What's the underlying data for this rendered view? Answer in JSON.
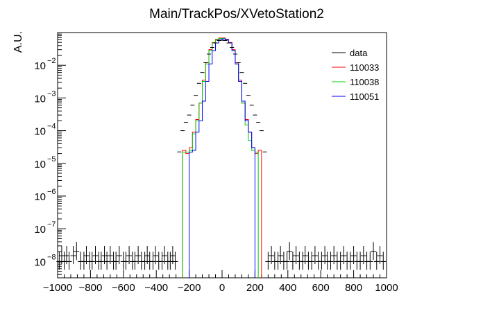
{
  "chart_data": {
    "type": "line",
    "title": "Main/TrackPos/XVetoStation2",
    "xlabel": "",
    "ylabel": "A.U.",
    "xlim": [
      -1000,
      1000
    ],
    "ylim_log10": [
      -8.5,
      -1.0
    ],
    "log_y": true,
    "grid": false,
    "legend_position": "top-right",
    "x_ticks": [
      -1000,
      -800,
      -600,
      -400,
      -200,
      0,
      200,
      400,
      600,
      800,
      1000
    ],
    "x_tick_labels": [
      "−1000",
      "−800",
      "−600",
      "−400",
      "−200",
      "0",
      "200",
      "400",
      "600",
      "800",
      "1000"
    ],
    "y_decades": [
      -8,
      -7,
      -6,
      -5,
      -4,
      -3,
      -2
    ],
    "y_tick_labels": [
      {
        "base": "10",
        "exp": "−8"
      },
      {
        "base": "10",
        "exp": "−7"
      },
      {
        "base": "10",
        "exp": "−6"
      },
      {
        "base": "10",
        "exp": "−5"
      },
      {
        "base": "10",
        "exp": "−4"
      },
      {
        "base": "10",
        "exp": "−3"
      },
      {
        "base": "10",
        "exp": "−2"
      }
    ],
    "legend": [
      {
        "name": "data",
        "color": "#000000"
      },
      {
        "name": "110033",
        "color": "#ff0000"
      },
      {
        "name": "110038",
        "color": "#00d000"
      },
      {
        "name": "110051",
        "color": "#0000ff"
      }
    ],
    "data_points": {
      "x": [
        -260,
        -240,
        -220,
        -200,
        -180,
        -160,
        -140,
        -120,
        -100,
        -80,
        -60,
        -40,
        -20,
        0,
        20,
        40,
        60,
        80,
        100,
        120,
        140,
        160,
        180,
        200,
        220,
        240,
        260
      ],
      "y": [
        2.24e-05,
        0.0001,
        0.00018,
        0.0003,
        0.0006,
        0.0012,
        0.0028,
        0.006,
        0.012,
        0.022,
        0.035,
        0.048,
        0.057,
        0.058,
        0.057,
        0.048,
        0.035,
        0.022,
        0.012,
        0.006,
        0.0028,
        0.0012,
        0.0006,
        0.0003,
        0.00018,
        0.0001,
        2.24e-05
      ]
    },
    "noise_points": {
      "x": [
        -990,
        -975,
        -960,
        -945,
        -930,
        -905,
        -885,
        -860,
        -840,
        -825,
        -805,
        -790,
        -770,
        -750,
        -735,
        -715,
        -700,
        -680,
        -660,
        -645,
        -625,
        -600,
        -585,
        -565,
        -545,
        -530,
        -510,
        -490,
        -470,
        -455,
        -440,
        -420,
        -405,
        -385,
        -365,
        -350,
        -330,
        -315,
        -300,
        -285,
        280,
        300,
        320,
        340,
        355,
        375,
        395,
        410,
        430,
        450,
        470,
        490,
        505,
        525,
        545,
        565,
        585,
        605,
        625,
        640,
        660,
        680,
        700,
        720,
        740,
        760,
        780,
        800,
        820,
        840,
        860,
        880,
        900,
        920,
        940,
        960,
        980
      ],
      "y": [
        1e-08,
        1.5e-08,
        1e-08,
        1.5e-08,
        1e-08,
        1.5e-08,
        2e-08,
        1e-08,
        1e-08,
        1.5e-08,
        1e-08,
        1e-08,
        1.5e-08,
        1e-08,
        1e-08,
        1.5e-08,
        1e-08,
        1.5e-08,
        1e-08,
        1e-08,
        1.5e-08,
        1e-08,
        1e-08,
        1.5e-08,
        1e-08,
        1e-08,
        1.5e-08,
        1e-08,
        1e-08,
        1.5e-08,
        1e-08,
        1e-08,
        1.5e-08,
        1e-08,
        1e-08,
        1.5e-08,
        1e-08,
        1e-08,
        1.5e-08,
        1e-08,
        1e-08,
        1.5e-08,
        1e-08,
        1e-08,
        1.5e-08,
        1e-08,
        1e-08,
        2e-08,
        1e-08,
        1.5e-08,
        1e-08,
        1e-08,
        1.5e-08,
        1e-08,
        1e-08,
        1.5e-08,
        1e-08,
        1e-08,
        1.5e-08,
        1e-08,
        1e-08,
        1.5e-08,
        1e-08,
        1e-08,
        1.5e-08,
        1e-08,
        1e-08,
        1.5e-08,
        1e-08,
        1e-08,
        1.5e-08,
        1e-08,
        1e-08,
        2e-08,
        1e-08,
        1.5e-08,
        1e-08
      ]
    },
    "series": [
      {
        "name": "110033",
        "color": "#ff0000",
        "edges": [
          -240,
          -220,
          -200,
          -180,
          -160,
          -140,
          -120,
          -100,
          -80,
          -60,
          -40,
          -20,
          0,
          20,
          40,
          60,
          80,
          100,
          120,
          140,
          160,
          180,
          200,
          220,
          240
        ],
        "values": [
          2.5e-05,
          2e-05,
          3e-05,
          9e-05,
          0.00022,
          0.0007,
          0.0035,
          0.012,
          0.03,
          0.05,
          0.062,
          0.068,
          0.068,
          0.062,
          0.05,
          0.03,
          0.012,
          0.0035,
          0.0007,
          0.00022,
          9e-05,
          3e-05,
          2e-05,
          2.5e-05
        ]
      },
      {
        "name": "110038",
        "color": "#00d000",
        "edges": [
          -240,
          -220,
          -200,
          -180,
          -160,
          -140,
          -120,
          -100,
          -80,
          -60,
          -40,
          -20,
          0,
          20,
          40,
          60,
          80,
          100,
          120,
          140,
          160,
          180,
          200,
          220
        ],
        "values": [
          2.2e-05,
          2.2e-05,
          2.5e-05,
          8e-05,
          0.0002,
          0.0007,
          0.0032,
          0.011,
          0.028,
          0.048,
          0.06,
          0.066,
          0.066,
          0.06,
          0.048,
          0.028,
          0.011,
          0.0032,
          0.0007,
          0.00015,
          5e-05,
          2.5e-05,
          2.2e-05
        ]
      },
      {
        "name": "110051",
        "color": "#0000ff",
        "edges": [
          -200,
          -180,
          -160,
          -140,
          -120,
          -100,
          -80,
          -60,
          -40,
          -20,
          0,
          20,
          40,
          60,
          80,
          100,
          120,
          140,
          160,
          180,
          200
        ],
        "values": [
          2.2e-05,
          2.5e-05,
          9e-05,
          0.0002,
          0.0008,
          0.0032,
          0.011,
          0.028,
          0.048,
          0.06,
          0.064,
          0.06,
          0.048,
          0.028,
          0.011,
          0.0032,
          0.0008,
          0.0002,
          9e-05,
          3e-05
        ]
      }
    ]
  }
}
